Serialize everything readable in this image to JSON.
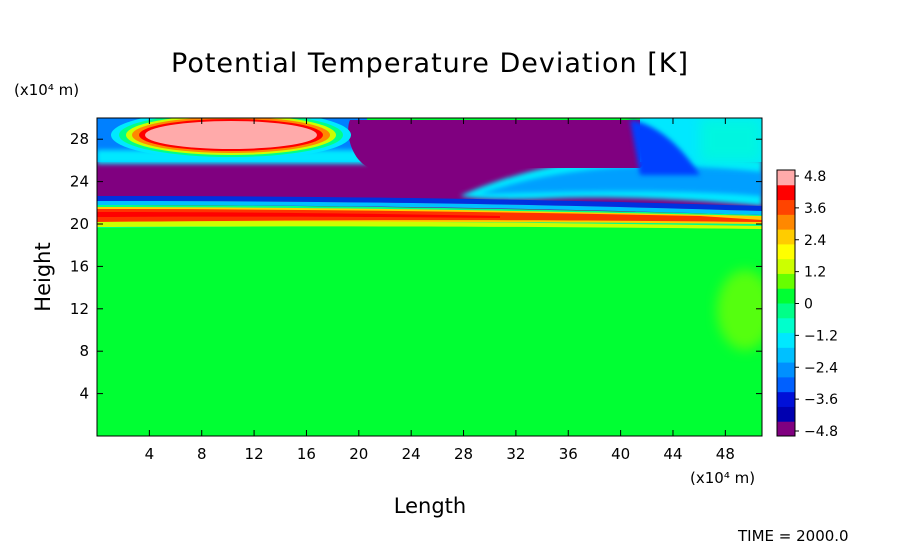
{
  "chart_data": {
    "type": "heatmap",
    "title": "Potential Temperature Deviation [K]",
    "xlabel": "Length",
    "ylabel": "Height",
    "x_unit_label": "(x10⁴ m)",
    "y_unit_label": "(x10⁴ m)",
    "x_ticks": [
      4,
      8,
      12,
      16,
      20,
      24,
      28,
      32,
      36,
      40,
      44,
      48
    ],
    "y_ticks": [
      4,
      8,
      12,
      16,
      20,
      24,
      28
    ],
    "xlim": [
      0,
      50.8
    ],
    "ylim": [
      0,
      30
    ],
    "colorbar": {
      "labels": [
        "4.8",
        "3.6",
        "2.4",
        "1.2",
        "0",
        "−1.2",
        "−2.4",
        "−3.6",
        "−4.8"
      ],
      "range": [
        -4.8,
        4.8
      ],
      "step": 0.6,
      "colors": [
        "#800080",
        "#0000b0",
        "#0010d8",
        "#0060ff",
        "#0090ff",
        "#00c0ff",
        "#00e8ff",
        "#00ffcc",
        "#00ff88",
        "#00ff33",
        "#66ff00",
        "#ccff00",
        "#ffff00",
        "#ffcc00",
        "#ff8800",
        "#ff4400",
        "#ff0000",
        "#ffaaaa"
      ]
    },
    "field_features": [
      {
        "kind": "warm_blob",
        "x_range": [
          4,
          18
        ],
        "y_range": [
          26.5,
          30
        ],
        "value": 4.8
      },
      {
        "kind": "cold_cap",
        "x_range": [
          20,
          43
        ],
        "y_range": [
          26,
          30
        ],
        "value": -4.8
      },
      {
        "kind": "cold_layer",
        "y_range": [
          21,
          26
        ],
        "value": -4.8
      },
      {
        "kind": "warm_band",
        "y_range": [
          19.8,
          21
        ],
        "value": 3.6
      },
      {
        "kind": "background",
        "y_range": [
          0,
          19.8
        ],
        "value": 0
      }
    ],
    "grid": false,
    "legend": "colorbar-right"
  },
  "footer": {
    "time_label": "TIME = 2000.0"
  }
}
